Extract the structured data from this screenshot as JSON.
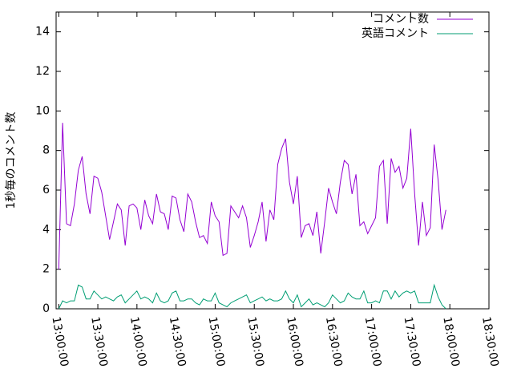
{
  "chart_data": {
    "type": "line",
    "y_label": "1秒毎のコメント数",
    "x": [
      "13:00:00",
      "13:03:00",
      "13:06:00",
      "13:09:00",
      "13:12:00",
      "13:15:00",
      "13:18:00",
      "13:21:00",
      "13:24:00",
      "13:27:00",
      "13:30:00",
      "13:33:00",
      "13:36:00",
      "13:39:00",
      "13:42:00",
      "13:45:00",
      "13:48:00",
      "13:51:00",
      "13:54:00",
      "13:57:00",
      "14:00:00",
      "14:03:00",
      "14:06:00",
      "14:09:00",
      "14:12:00",
      "14:15:00",
      "14:18:00",
      "14:21:00",
      "14:24:00",
      "14:27:00",
      "14:30:00",
      "14:33:00",
      "14:36:00",
      "14:39:00",
      "14:42:00",
      "14:45:00",
      "14:48:00",
      "14:51:00",
      "14:54:00",
      "14:57:00",
      "15:00:00",
      "15:03:00",
      "15:06:00",
      "15:09:00",
      "15:12:00",
      "15:15:00",
      "15:18:00",
      "15:21:00",
      "15:24:00",
      "15:27:00",
      "15:30:00",
      "15:33:00",
      "15:36:00",
      "15:39:00",
      "15:42:00",
      "15:45:00",
      "15:48:00",
      "15:51:00",
      "15:54:00",
      "15:57:00",
      "16:00:00",
      "16:03:00",
      "16:06:00",
      "16:09:00",
      "16:12:00",
      "16:15:00",
      "16:18:00",
      "16:21:00",
      "16:24:00",
      "16:27:00",
      "16:30:00",
      "16:33:00",
      "16:36:00",
      "16:39:00",
      "16:42:00",
      "16:45:00",
      "16:48:00",
      "16:51:00",
      "16:54:00",
      "16:57:00",
      "17:00:00",
      "17:03:00",
      "17:06:00",
      "17:09:00",
      "17:12:00",
      "17:15:00",
      "17:18:00",
      "17:21:00",
      "17:24:00",
      "17:27:00",
      "17:30:00",
      "17:33:00",
      "17:36:00",
      "17:39:00",
      "17:42:00",
      "17:45:00",
      "17:48:00",
      "17:51:00",
      "17:54:00",
      "17:57:00"
    ],
    "series": [
      {
        "name": "コメント数",
        "color": "#9400d3",
        "values": [
          2.0,
          9.4,
          4.3,
          4.2,
          5.3,
          7.0,
          7.7,
          5.8,
          4.8,
          6.7,
          6.6,
          5.9,
          4.7,
          3.5,
          4.4,
          5.3,
          5.0,
          3.2,
          5.2,
          5.3,
          5.1,
          4.0,
          5.5,
          4.7,
          4.3,
          5.8,
          4.9,
          4.8,
          4.0,
          5.7,
          5.6,
          4.5,
          3.9,
          5.8,
          5.4,
          4.4,
          3.6,
          3.7,
          3.3,
          5.4,
          4.7,
          4.4,
          2.7,
          2.8,
          5.2,
          4.9,
          4.6,
          5.2,
          4.6,
          3.1,
          3.7,
          4.4,
          5.4,
          3.4,
          5.0,
          4.5,
          7.3,
          8.1,
          8.6,
          6.4,
          5.3,
          6.7,
          3.6,
          4.2,
          4.3,
          3.7,
          4.9,
          2.8,
          4.4,
          6.1,
          5.4,
          4.8,
          6.4,
          7.5,
          7.3,
          5.8,
          6.8,
          4.2,
          4.4,
          3.8,
          4.2,
          4.6,
          7.2,
          7.5,
          4.3,
          7.6,
          6.9,
          7.2,
          6.1,
          6.6,
          9.1,
          5.8,
          3.2,
          5.4,
          3.7,
          4.1,
          8.3,
          6.5,
          4.0,
          5.0
        ]
      },
      {
        "name": "英語コメント",
        "color": "#009e73",
        "values": [
          0.0,
          0.4,
          0.3,
          0.4,
          0.4,
          1.2,
          1.1,
          0.5,
          0.5,
          0.9,
          0.7,
          0.5,
          0.6,
          0.5,
          0.4,
          0.6,
          0.7,
          0.3,
          0.5,
          0.7,
          0.9,
          0.5,
          0.6,
          0.5,
          0.3,
          0.8,
          0.4,
          0.3,
          0.4,
          0.8,
          0.9,
          0.4,
          0.4,
          0.5,
          0.5,
          0.3,
          0.2,
          0.5,
          0.4,
          0.4,
          0.8,
          0.3,
          0.2,
          0.1,
          0.3,
          0.4,
          0.5,
          0.6,
          0.7,
          0.3,
          0.4,
          0.5,
          0.6,
          0.4,
          0.5,
          0.4,
          0.4,
          0.5,
          0.9,
          0.5,
          0.3,
          0.7,
          0.1,
          0.3,
          0.5,
          0.2,
          0.3,
          0.2,
          0.1,
          0.3,
          0.7,
          0.5,
          0.3,
          0.4,
          0.8,
          0.6,
          0.5,
          0.5,
          0.9,
          0.3,
          0.3,
          0.4,
          0.3,
          0.9,
          0.9,
          0.5,
          0.9,
          0.6,
          0.8,
          0.9,
          0.8,
          0.9,
          0.3,
          0.3,
          0.3,
          0.3,
          1.2,
          0.6,
          0.2,
          0.0
        ]
      }
    ],
    "xlim": [
      "12:58:00",
      "18:30:00"
    ],
    "xticks": [
      "13:00:00",
      "13:30:00",
      "14:00:00",
      "14:30:00",
      "15:00:00",
      "15:30:00",
      "16:00:00",
      "16:30:00",
      "17:00:00",
      "17:30:00",
      "18:00:00",
      "18:30:00"
    ],
    "ylim": [
      0,
      15
    ],
    "yticks": [
      0,
      2,
      4,
      6,
      8,
      10,
      12,
      14
    ],
    "legend": "top-right"
  }
}
